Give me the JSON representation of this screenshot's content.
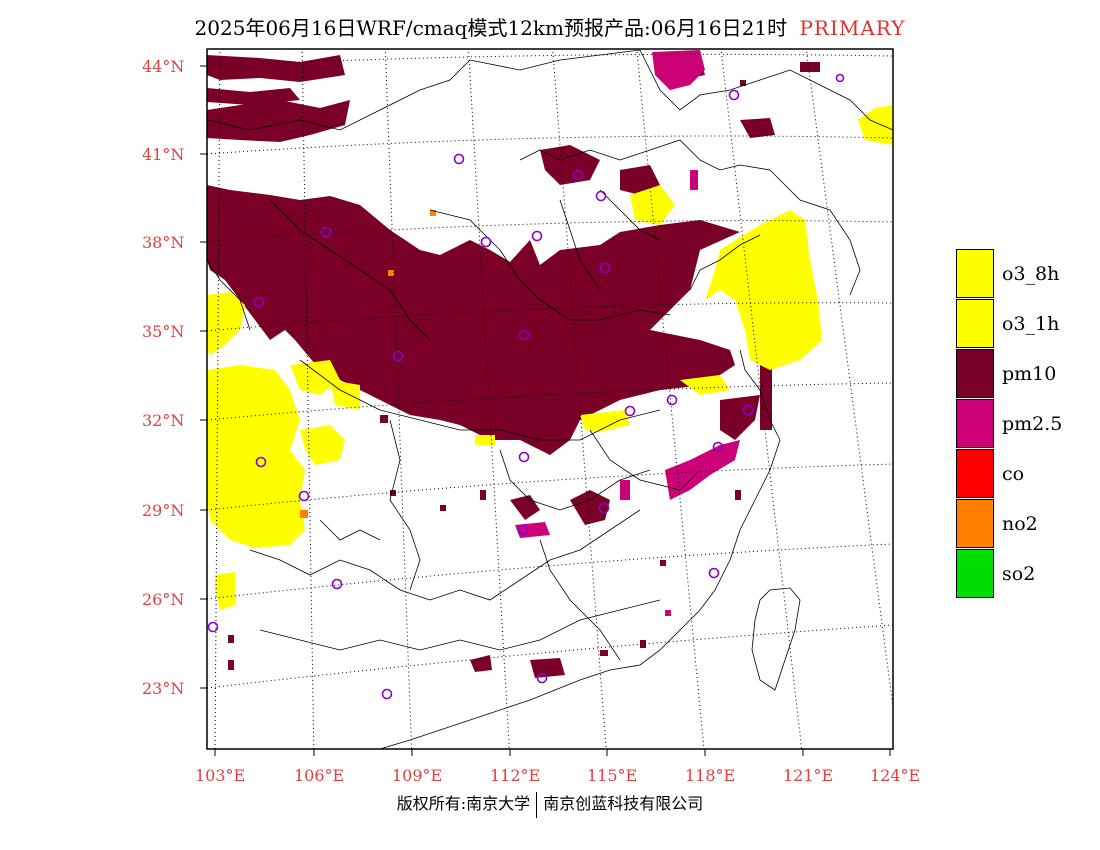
{
  "title": {
    "main": "2025年06月16日WRF/cmaq模式12km预报产品:06月16日21时",
    "tag": "PRIMARY"
  },
  "colors": {
    "o3_8h": "#ffff00",
    "o3_1h": "#ffff00",
    "pm10": "#7a0028",
    "pm25": "#cc0077",
    "co": "#ff0000",
    "no2": "#ff7f00",
    "so2": "#00dd00",
    "label": "#e04040",
    "station": "#8800cc"
  },
  "legend": [
    {
      "key": "o3_8h",
      "label": "o3_8h",
      "color": "#ffff00"
    },
    {
      "key": "o3_1h",
      "label": "o3_1h",
      "color": "#ffff00"
    },
    {
      "key": "pm10",
      "label": "pm10",
      "color": "#7a0028"
    },
    {
      "key": "pm25",
      "label": "pm2.5",
      "color": "#cc0077"
    },
    {
      "key": "co",
      "label": "co",
      "color": "#ff0000"
    },
    {
      "key": "no2",
      "label": "no2",
      "color": "#ff7f00"
    },
    {
      "key": "so2",
      "label": "so2",
      "color": "#00dd00"
    }
  ],
  "axes": {
    "latitudes": [
      {
        "label": "44°N",
        "value": 44
      },
      {
        "label": "41°N",
        "value": 41
      },
      {
        "label": "38°N",
        "value": 38
      },
      {
        "label": "35°N",
        "value": 35
      },
      {
        "label": "32°N",
        "value": 32
      },
      {
        "label": "29°N",
        "value": 29
      },
      {
        "label": "26°N",
        "value": 26
      },
      {
        "label": "23°N",
        "value": 23
      }
    ],
    "longitudes": [
      {
        "label": "103°E",
        "value": 103
      },
      {
        "label": "106°E",
        "value": 106
      },
      {
        "label": "109°E",
        "value": 109
      },
      {
        "label": "112°E",
        "value": 112
      },
      {
        "label": "115°E",
        "value": 115
      },
      {
        "label": "118°E",
        "value": 118
      },
      {
        "label": "121°E",
        "value": 121
      },
      {
        "label": "124°E",
        "value": 124
      }
    ]
  },
  "footer": {
    "left": "版权所有:南京大学",
    "right": "南京创蓝科技有限公司"
  }
}
